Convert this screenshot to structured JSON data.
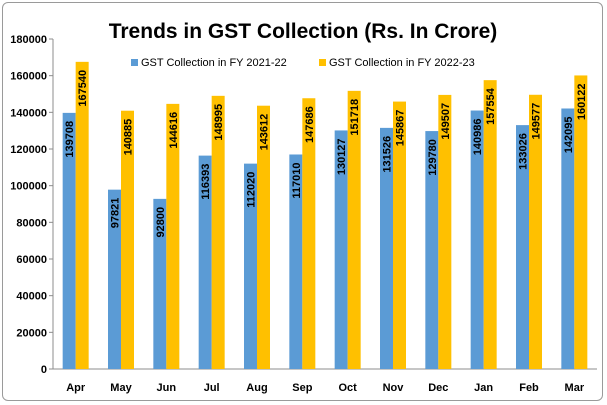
{
  "chart_data": {
    "type": "bar",
    "title": "Trends in GST Collection (Rs. In Crore)",
    "xlabel": "",
    "ylabel": "",
    "categories": [
      "Apr",
      "May",
      "Jun",
      "Jul",
      "Aug",
      "Sep",
      "Oct",
      "Nov",
      "Dec",
      "Jan",
      "Feb",
      "Mar"
    ],
    "series": [
      {
        "name": "GST Collection in FY 2021-22",
        "color": "#5b9bd5",
        "values": [
          139708,
          97821,
          92800,
          116393,
          112020,
          117010,
          130127,
          131526,
          129780,
          140986,
          133026,
          142095
        ]
      },
      {
        "name": "GST Collection in FY 2022-23",
        "color": "#ffc000",
        "values": [
          167540,
          140885,
          144616,
          148995,
          143612,
          147686,
          151718,
          145867,
          149507,
          157554,
          149577,
          160122
        ]
      }
    ],
    "ylim": [
      0,
      180000
    ],
    "yticks": [
      0,
      20000,
      40000,
      60000,
      80000,
      100000,
      120000,
      140000,
      160000,
      180000
    ],
    "grid": false,
    "legend_position": "top"
  }
}
